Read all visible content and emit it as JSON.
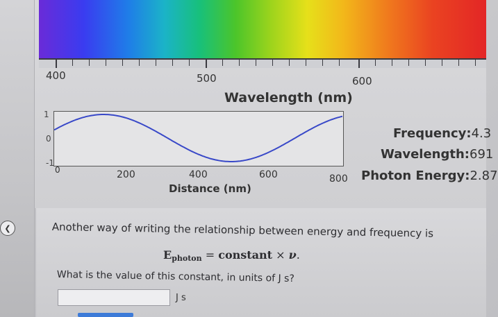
{
  "spectrum": {
    "tick_labels": [
      "400",
      "500",
      "600"
    ],
    "axis_title": "Wavelength (nm)"
  },
  "wave_plot": {
    "y_ticks": [
      "1",
      "0",
      "-1"
    ],
    "x_ticks": [
      "0",
      "200",
      "400",
      "600",
      "800"
    ],
    "x_title": "Distance (nm)",
    "line_color": "#3848c8"
  },
  "readouts": {
    "frequency_label": "Frequency:",
    "frequency_value": "4.3",
    "wavelength_label": "Wavelength:",
    "wavelength_value": "691",
    "energy_label": "Photon Energy:",
    "energy_value": "2.87"
  },
  "question": {
    "intro": "Another way of writing the relationship between energy and frequency is",
    "eq_E": "E",
    "eq_sub": "photon",
    "eq_rest": " = ",
    "eq_constant": "constant",
    "eq_times": " × ",
    "eq_nu": "ν",
    "eq_end": ".",
    "ask": "What is the value of this constant, in units of J s?",
    "answer_value": "",
    "unit": "J s"
  },
  "collapse_button": {
    "icon": "chevron-left-icon"
  }
}
